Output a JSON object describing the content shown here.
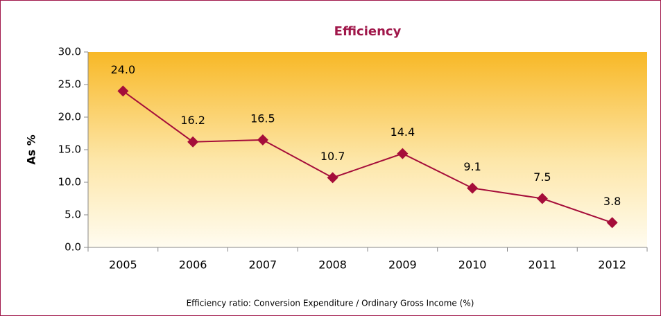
{
  "chart_data": {
    "type": "line",
    "title": "Efficiency",
    "y_label": "As %",
    "caption": "Efficiency ratio: Conversion Expenditure / Ordinary Gross Income (%)",
    "categories": [
      "2005",
      "2006",
      "2007",
      "2008",
      "2009",
      "2010",
      "2011",
      "2012"
    ],
    "values": [
      24.0,
      16.2,
      16.5,
      10.7,
      14.4,
      9.1,
      7.5,
      3.8
    ],
    "value_labels": [
      "24.0",
      "16.2",
      "16.5",
      "10.7",
      "14.4",
      "9.1",
      "7.5",
      "3.8"
    ],
    "color": "#a50d3a",
    "ylim": [
      0,
      30
    ],
    "yticks": [
      {
        "value": 0,
        "label": "0.0"
      },
      {
        "value": 5,
        "label": "5.0"
      },
      {
        "value": 10,
        "label": "10.0"
      },
      {
        "value": 15,
        "label": "15.0"
      },
      {
        "value": 20,
        "label": "20.0"
      },
      {
        "value": 25,
        "label": "25.0"
      },
      {
        "value": 30,
        "label": "30.0"
      }
    ]
  }
}
